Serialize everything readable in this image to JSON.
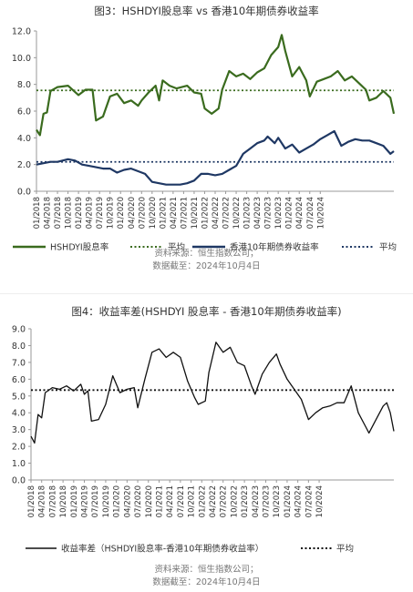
{
  "chart_data": [
    {
      "type": "line",
      "title": "图3：HSHDYI股息率 vs 香港10年期债券收益率",
      "ylim": [
        0,
        12
      ],
      "yticks": [
        "0.0",
        "2.0",
        "4.0",
        "6.0",
        "8.0",
        "10.0",
        "12.0"
      ],
      "x_labels": [
        "01/2018",
        "04/2018",
        "07/2018",
        "10/2018",
        "01/2019",
        "04/2019",
        "07/2019",
        "10/2019",
        "01/2020",
        "04/2020",
        "07/2020",
        "10/2020",
        "01/2021",
        "04/2021",
        "07/2021",
        "10/2021",
        "01/2022",
        "04/2022",
        "07/2022",
        "10/2022",
        "01/2023",
        "04/2023",
        "07/2023",
        "10/2023",
        "01/2024",
        "04/2024",
        "07/2024",
        "10/2024"
      ],
      "x_range": [
        "2018-01",
        "2024-10"
      ],
      "legend_position": "bottom",
      "grid": false,
      "series": [
        {
          "name": "HSHDYI股息率",
          "style": "solid",
          "color": "#3a6b1e",
          "points": [
            [
              0,
              4.6
            ],
            [
              1,
              4.2
            ],
            [
              2,
              5.8
            ],
            [
              3,
              5.9
            ],
            [
              4,
              7.5
            ],
            [
              6,
              7.8
            ],
            [
              9,
              7.9
            ],
            [
              12,
              7.2
            ],
            [
              14,
              7.6
            ],
            [
              16,
              7.6
            ],
            [
              17,
              5.3
            ],
            [
              19,
              5.6
            ],
            [
              21,
              7.1
            ],
            [
              23,
              7.3
            ],
            [
              25,
              6.6
            ],
            [
              27,
              6.8
            ],
            [
              29,
              6.4
            ],
            [
              30,
              6.8
            ],
            [
              32,
              7.4
            ],
            [
              34,
              7.9
            ],
            [
              35,
              6.8
            ],
            [
              36,
              8.3
            ],
            [
              38,
              7.9
            ],
            [
              40,
              7.7
            ],
            [
              43,
              7.9
            ],
            [
              45,
              7.4
            ],
            [
              47,
              7.3
            ],
            [
              48,
              6.2
            ],
            [
              50,
              5.8
            ],
            [
              52,
              6.2
            ],
            [
              53,
              7.6
            ],
            [
              55,
              9.0
            ],
            [
              57,
              8.6
            ],
            [
              59,
              8.8
            ],
            [
              61,
              8.4
            ],
            [
              63,
              8.9
            ],
            [
              65,
              9.2
            ],
            [
              67,
              10.2
            ],
            [
              69,
              10.8
            ],
            [
              70,
              11.7
            ],
            [
              71,
              10.5
            ],
            [
              73,
              8.6
            ],
            [
              75,
              9.3
            ],
            [
              77,
              8.3
            ],
            [
              78,
              7.1
            ],
            [
              80,
              8.2
            ],
            [
              82,
              8.4
            ],
            [
              84,
              8.6
            ],
            [
              86,
              9.0
            ],
            [
              88,
              8.3
            ],
            [
              90,
              8.6
            ],
            [
              92,
              8.1
            ],
            [
              94,
              7.6
            ],
            [
              95,
              6.8
            ],
            [
              97,
              7.0
            ],
            [
              99,
              7.5
            ],
            [
              101,
              7.0
            ],
            [
              102,
              5.8
            ]
          ]
        },
        {
          "name": "平均",
          "style": "dotted",
          "color": "#3a6b1e",
          "value": 7.55
        },
        {
          "name": "香港10年期债券收益率",
          "style": "solid",
          "color": "#1f3864",
          "points": [
            [
              0,
              2.0
            ],
            [
              2,
              2.1
            ],
            [
              4,
              2.2
            ],
            [
              6,
              2.2
            ],
            [
              9,
              2.4
            ],
            [
              11,
              2.3
            ],
            [
              13,
              2.0
            ],
            [
              15,
              1.9
            ],
            [
              17,
              1.8
            ],
            [
              19,
              1.7
            ],
            [
              21,
              1.7
            ],
            [
              23,
              1.4
            ],
            [
              25,
              1.6
            ],
            [
              27,
              1.7
            ],
            [
              29,
              1.5
            ],
            [
              31,
              1.3
            ],
            [
              33,
              0.7
            ],
            [
              35,
              0.6
            ],
            [
              37,
              0.5
            ],
            [
              39,
              0.5
            ],
            [
              41,
              0.5
            ],
            [
              43,
              0.6
            ],
            [
              45,
              0.8
            ],
            [
              47,
              1.3
            ],
            [
              49,
              1.3
            ],
            [
              51,
              1.2
            ],
            [
              53,
              1.3
            ],
            [
              55,
              1.6
            ],
            [
              57,
              1.9
            ],
            [
              59,
              2.8
            ],
            [
              61,
              3.2
            ],
            [
              63,
              3.6
            ],
            [
              65,
              3.8
            ],
            [
              66,
              4.1
            ],
            [
              68,
              3.6
            ],
            [
              69,
              4.0
            ],
            [
              71,
              3.2
            ],
            [
              73,
              3.5
            ],
            [
              75,
              2.9
            ],
            [
              77,
              3.2
            ],
            [
              79,
              3.5
            ],
            [
              81,
              3.9
            ],
            [
              83,
              4.2
            ],
            [
              85,
              4.5
            ],
            [
              87,
              3.4
            ],
            [
              89,
              3.7
            ],
            [
              91,
              3.9
            ],
            [
              93,
              3.8
            ],
            [
              95,
              3.8
            ],
            [
              97,
              3.6
            ],
            [
              99,
              3.4
            ],
            [
              101,
              2.8
            ],
            [
              102,
              3.0
            ]
          ]
        },
        {
          "name": "平均",
          "style": "dotted",
          "color": "#1f3864",
          "value": 2.2
        }
      ],
      "source_lines": [
        "资料来源：恒生指数公司；",
        "数据截至：2024年10月4日"
      ]
    },
    {
      "type": "line",
      "title": "图4：收益率差(HSHDYI 股息率 - 香港10年期债券收益率)",
      "ylim": [
        0,
        9
      ],
      "yticks": [
        "0.0",
        "1.0",
        "2.0",
        "3.0",
        "4.0",
        "5.0",
        "6.0",
        "7.0",
        "8.0",
        "9.0"
      ],
      "x_labels": [
        "01/2018",
        "04/2018",
        "07/2018",
        "10/2018",
        "01/2019",
        "04/2019",
        "07/2019",
        "10/2019",
        "01/2020",
        "04/2020",
        "07/2020",
        "10/2020",
        "01/2021",
        "04/2021",
        "07/2021",
        "10/2021",
        "01/2022",
        "04/2022",
        "07/2022",
        "10/2022",
        "01/2023",
        "04/2023",
        "07/2023",
        "10/2023",
        "01/2024",
        "04/2024",
        "07/2024",
        "10/2024"
      ],
      "x_range": [
        "2018-01",
        "2024-10"
      ],
      "legend_position": "bottom",
      "grid": false,
      "series": [
        {
          "name": "收益率差（HSHDYI股息率-香港10年期债券收益率）",
          "style": "solid",
          "color": "#111111",
          "points": [
            [
              0,
              2.6
            ],
            [
              1,
              2.2
            ],
            [
              2,
              3.9
            ],
            [
              3,
              3.7
            ],
            [
              4,
              5.2
            ],
            [
              6,
              5.5
            ],
            [
              8,
              5.4
            ],
            [
              10,
              5.6
            ],
            [
              12,
              5.3
            ],
            [
              14,
              5.7
            ],
            [
              15,
              5.1
            ],
            [
              16,
              5.3
            ],
            [
              17,
              3.5
            ],
            [
              19,
              3.6
            ],
            [
              21,
              4.5
            ],
            [
              23,
              6.2
            ],
            [
              25,
              5.2
            ],
            [
              27,
              5.4
            ],
            [
              29,
              5.5
            ],
            [
              30,
              4.3
            ],
            [
              32,
              6.0
            ],
            [
              34,
              7.6
            ],
            [
              36,
              7.8
            ],
            [
              38,
              7.3
            ],
            [
              40,
              7.6
            ],
            [
              42,
              7.3
            ],
            [
              44,
              5.9
            ],
            [
              46,
              4.9
            ],
            [
              47,
              4.5
            ],
            [
              49,
              4.7
            ],
            [
              50,
              6.4
            ],
            [
              52,
              8.2
            ],
            [
              54,
              7.6
            ],
            [
              56,
              7.9
            ],
            [
              58,
              7.0
            ],
            [
              60,
              6.8
            ],
            [
              62,
              5.6
            ],
            [
              63,
              5.1
            ],
            [
              65,
              6.3
            ],
            [
              67,
              7.0
            ],
            [
              69,
              7.5
            ],
            [
              70,
              6.9
            ],
            [
              72,
              6.0
            ],
            [
              74,
              5.4
            ],
            [
              76,
              4.8
            ],
            [
              78,
              3.6
            ],
            [
              80,
              4.0
            ],
            [
              82,
              4.3
            ],
            [
              84,
              4.4
            ],
            [
              86,
              4.6
            ],
            [
              88,
              4.6
            ],
            [
              90,
              5.6
            ],
            [
              92,
              4.0
            ],
            [
              94,
              3.2
            ],
            [
              95,
              2.8
            ],
            [
              97,
              3.6
            ],
            [
              99,
              4.4
            ],
            [
              100,
              4.6
            ],
            [
              101,
              4.0
            ],
            [
              102,
              2.9
            ]
          ]
        },
        {
          "name": "平均",
          "style": "dotted",
          "color": "#111111",
          "value": 5.35
        }
      ],
      "source_lines": [
        "资料来源：恒生指数公司；",
        "数据截至：2024年10月4日"
      ]
    }
  ]
}
